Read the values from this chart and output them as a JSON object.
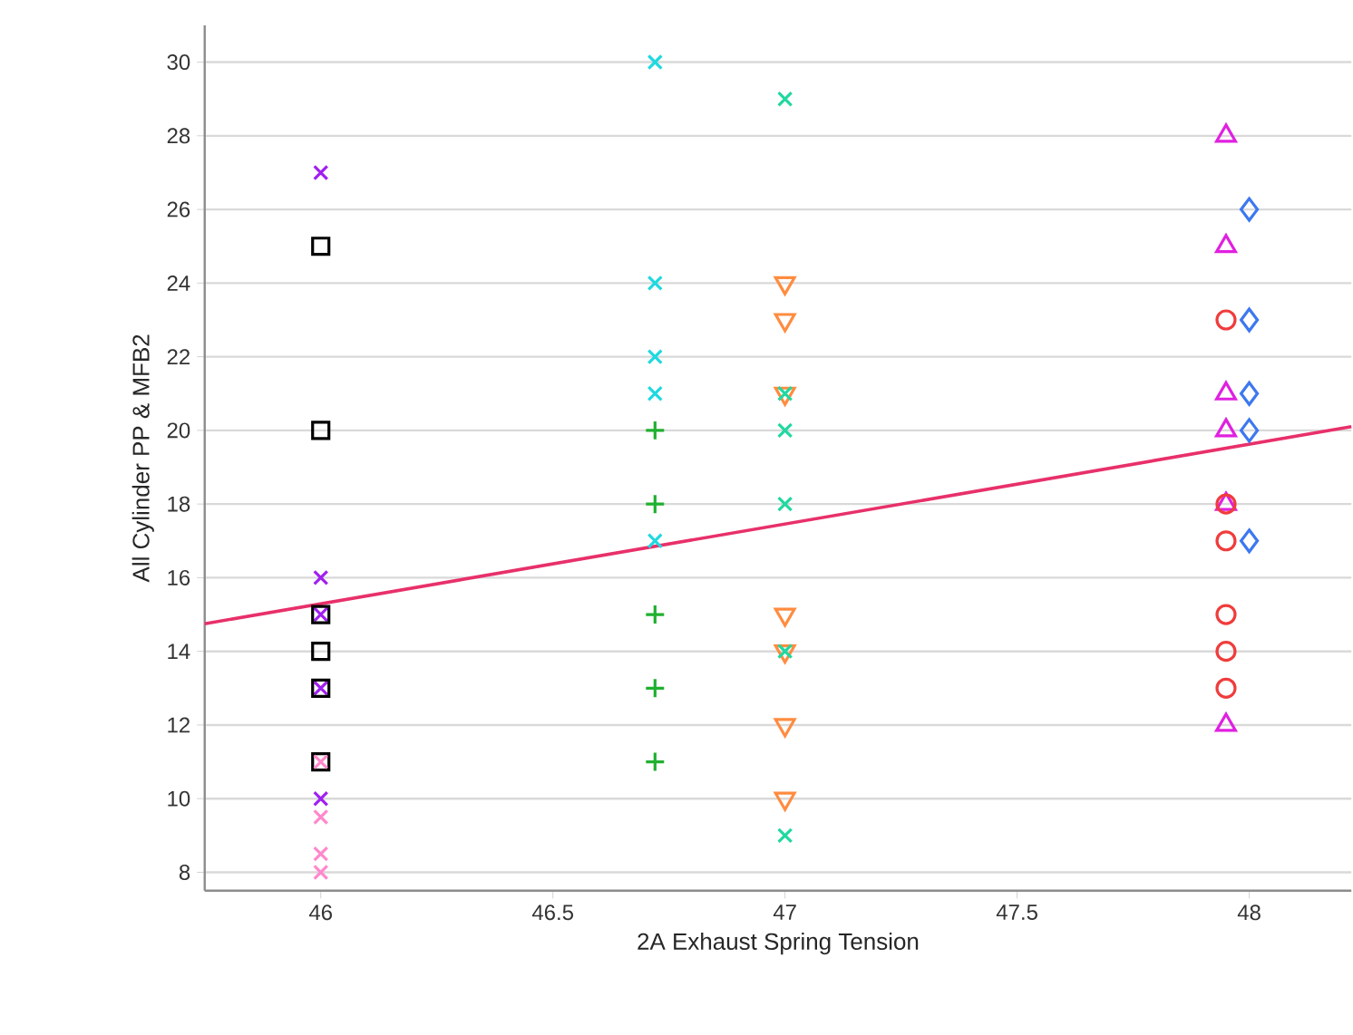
{
  "chart_data": {
    "type": "scatter",
    "xlabel": "2A Exhaust Spring Tension",
    "ylabel": "All Cylinder PP & MFB2",
    "xlim": [
      45.75,
      48.22
    ],
    "ylim": [
      7.5,
      31
    ],
    "xticks": [
      46,
      46.5,
      47,
      47.5,
      48
    ],
    "yticks": [
      8,
      10,
      12,
      14,
      16,
      18,
      20,
      22,
      24,
      26,
      28,
      30
    ],
    "grid": "y",
    "series": [
      {
        "color": "#a020f0",
        "marker": "cross",
        "x": [
          46,
          46,
          46,
          46,
          46
        ],
        "values": [
          27,
          16,
          15,
          13,
          10
        ]
      },
      {
        "color": "#000000",
        "marker": "square",
        "x": [
          46,
          46,
          46,
          46,
          46,
          46
        ],
        "values": [
          25,
          20,
          15,
          14,
          13,
          11
        ]
      },
      {
        "color": "#ff88cc",
        "marker": "cross",
        "x": [
          46,
          46,
          46,
          46
        ],
        "values": [
          11,
          9.5,
          8.5,
          8
        ]
      },
      {
        "color": "#20d8e0",
        "marker": "cross",
        "x": [
          46.72,
          46.72,
          46.72,
          46.72,
          46.72
        ],
        "values": [
          30,
          24,
          22,
          21,
          17
        ]
      },
      {
        "color": "#20b030",
        "marker": "plus",
        "x": [
          46.72,
          46.72,
          46.72,
          46.72,
          46.72
        ],
        "values": [
          20,
          18,
          15,
          13,
          11
        ]
      },
      {
        "color": "#ff8c40",
        "marker": "triangle-down",
        "x": [
          47,
          47,
          47,
          47,
          47,
          47,
          47
        ],
        "values": [
          24,
          23,
          21,
          15,
          14,
          12,
          10
        ]
      },
      {
        "color": "#20d8a0",
        "marker": "cross",
        "x": [
          47,
          47,
          47,
          47,
          47,
          47
        ],
        "values": [
          29,
          21,
          20,
          18,
          14,
          9
        ]
      },
      {
        "color": "#e020e0",
        "marker": "triangle",
        "x": [
          47.95,
          47.95,
          47.95,
          47.95,
          47.95,
          47.95
        ],
        "values": [
          28,
          25,
          21,
          20,
          18,
          12
        ]
      },
      {
        "color": "#f03c3c",
        "marker": "circle",
        "x": [
          47.95,
          47.95,
          47.95,
          47.95,
          47.95,
          47.95
        ],
        "values": [
          23,
          18,
          17,
          15,
          14,
          13
        ]
      },
      {
        "color": "#3c78f0",
        "marker": "diamond",
        "x": [
          48,
          48,
          48,
          48,
          48
        ],
        "values": [
          26,
          23,
          21,
          20,
          17
        ]
      },
      {
        "type": "line",
        "color": "#e8306a",
        "marker": "none",
        "line_style": "solid",
        "x": [
          45.75,
          48.22
        ],
        "values": [
          14.75,
          20.1
        ]
      }
    ]
  }
}
